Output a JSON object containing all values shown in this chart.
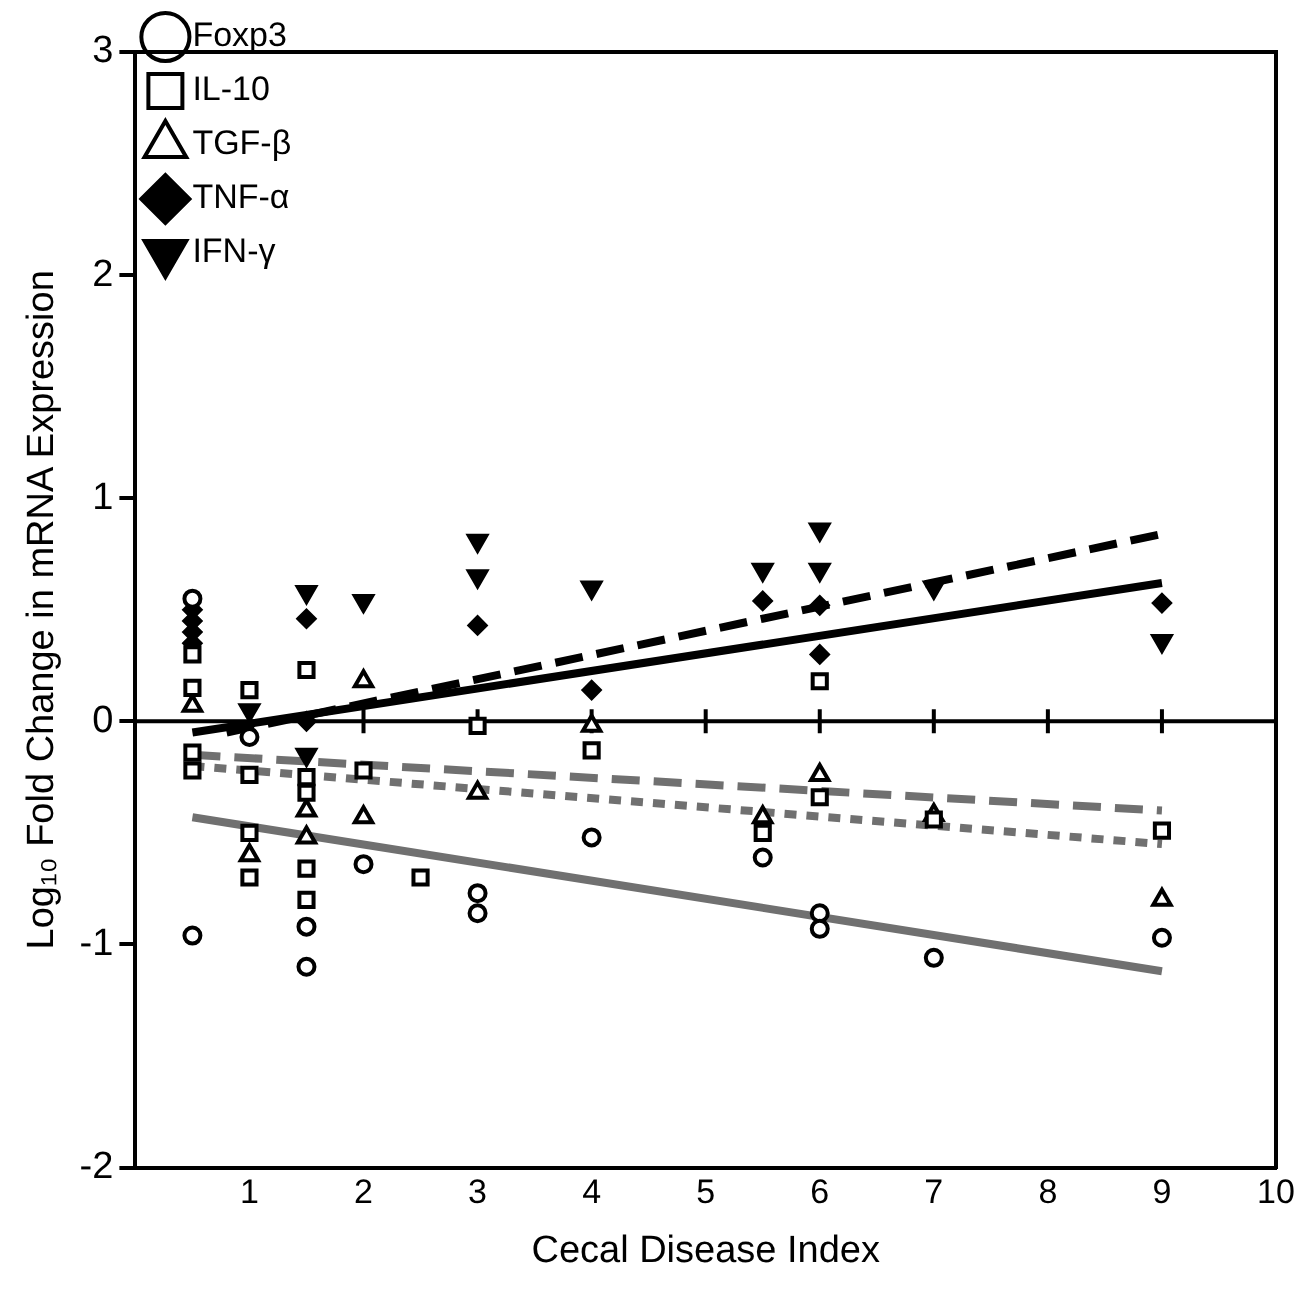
{
  "chart_data": {
    "type": "scatter",
    "xlabel": "Cecal Disease Index",
    "ylabel": "Log₁₀ Fold Change in mRNA Expression",
    "xlim": [
      0,
      10
    ],
    "xticks": [
      1,
      2,
      3,
      4,
      5,
      6,
      7,
      8,
      9,
      10
    ],
    "ylim": [
      -2,
      3
    ],
    "yticks": [
      -2,
      -1,
      0,
      1,
      2,
      3
    ],
    "grid": false,
    "legend": "top left",
    "ref_lines": [
      {
        "axis": "y",
        "value": 0,
        "color": "#000000"
      }
    ],
    "series": [
      {
        "name": "Foxp3",
        "color": "#000000",
        "marker": "circle",
        "x": [
          0.5,
          0.5,
          1,
          1.5,
          1.5,
          2,
          3,
          3,
          4,
          5.5,
          6,
          6,
          7,
          9
        ],
        "values": [
          0.55,
          -0.96,
          -0.07,
          -0.92,
          -1.1,
          -0.64,
          -0.77,
          -0.86,
          -0.52,
          -0.61,
          -0.86,
          -0.93,
          -1.06,
          -0.97
        ]
      },
      {
        "name": "IL-10",
        "color": "#000000",
        "marker": "square",
        "x": [
          0.5,
          0.5,
          0.5,
          0.5,
          1,
          1,
          1,
          1,
          1.5,
          1.5,
          1.5,
          1.5,
          1.5,
          2,
          2.5,
          3,
          4,
          5.5,
          6,
          6,
          7,
          9
        ],
        "values": [
          0.3,
          0.15,
          -0.14,
          -0.22,
          0.14,
          -0.24,
          -0.5,
          -0.7,
          0.23,
          -0.25,
          -0.32,
          -0.66,
          -0.8,
          -0.22,
          -0.7,
          -0.02,
          -0.13,
          -0.5,
          0.18,
          -0.34,
          -0.44,
          -0.49
        ]
      },
      {
        "name": "TGF-β",
        "color": "#000000",
        "marker": "triangle",
        "x": [
          0.5,
          1,
          1.5,
          1.5,
          2,
          2,
          3,
          4,
          5.5,
          6,
          7,
          9
        ],
        "values": [
          0.07,
          -0.6,
          -0.4,
          -0.52,
          0.18,
          -0.43,
          -0.32,
          -0.02,
          -0.43,
          -0.24,
          -0.42,
          -0.8
        ]
      },
      {
        "name": "TNF-α",
        "color": "#000000",
        "marker": "diamond",
        "x": [
          0.5,
          0.5,
          0.5,
          0.5,
          1.5,
          1.5,
          3,
          4,
          5.5,
          6,
          6,
          9
        ],
        "values": [
          0.5,
          0.45,
          0.4,
          0.35,
          0.46,
          0.0,
          0.43,
          0.14,
          0.54,
          0.52,
          0.3,
          0.53
        ]
      },
      {
        "name": "IFN-γ",
        "color": "#000000",
        "marker": "triangle-down",
        "x": [
          1,
          1.5,
          1.5,
          2,
          3,
          3,
          4,
          5.5,
          6,
          6,
          7,
          9
        ],
        "values": [
          0.05,
          0.58,
          -0.15,
          0.54,
          0.81,
          0.65,
          0.6,
          0.68,
          0.86,
          0.68,
          0.6,
          0.36
        ]
      },
      {
        "type": "line",
        "color": "#000000",
        "line_style": "solid",
        "x": [
          0.5,
          9
        ],
        "values": [
          -0.05,
          0.62
        ]
      },
      {
        "type": "line",
        "color": "#000000",
        "line_style": "dashed",
        "x": [
          0.8,
          9
        ],
        "values": [
          -0.05,
          0.84
        ]
      },
      {
        "type": "line",
        "color": "#707070",
        "line_style": "solid",
        "x": [
          0.5,
          9
        ],
        "values": [
          -0.43,
          -1.12
        ]
      },
      {
        "type": "line",
        "color": "#707070",
        "line_style": "dashed",
        "x": [
          0.5,
          9
        ],
        "values": [
          -0.15,
          -0.4
        ]
      },
      {
        "type": "line",
        "color": "#707070",
        "line_style": "dotted",
        "x": [
          0.5,
          9
        ],
        "values": [
          -0.2,
          -0.55
        ]
      }
    ]
  }
}
